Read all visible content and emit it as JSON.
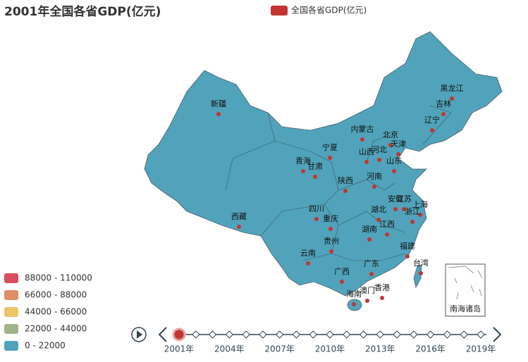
{
  "title": "2001年全国各省GDP(亿元)",
  "legend": {
    "name": "全国各省GDP(亿元)",
    "color": "#c23531"
  },
  "visual_map": [
    {
      "label": "88000 - 110000",
      "color": "#d94e5d"
    },
    {
      "label": "66000 - 88000",
      "color": "#e08e64"
    },
    {
      "label": "44000 - 66000",
      "color": "#eac763"
    },
    {
      "label": "22000 - 44000",
      "color": "#9fb48a"
    },
    {
      "label": "0 - 22000",
      "color": "#50a3ba"
    }
  ],
  "map_color": "#50a3ba",
  "provinces": [
    "新疆",
    "西藏",
    "青海",
    "甘肃",
    "宁夏",
    "内蒙古",
    "黑龙江",
    "吉林",
    "辽宁",
    "北京",
    "天津",
    "河北",
    "山西",
    "山东",
    "河南",
    "陕西",
    "四川",
    "重庆",
    "湖北",
    "安徽",
    "江苏",
    "上海",
    "浙江",
    "江西",
    "湖南",
    "贵州",
    "福建",
    "云南",
    "广西",
    "广东",
    "台湾",
    "香港",
    "澳门",
    "海南"
  ],
  "inset_label": "南海诸岛",
  "timeline": {
    "labels": [
      "2001年",
      "2004年",
      "2007年",
      "2010年",
      "2013年",
      "2016年",
      "2019年"
    ],
    "current": 0
  }
}
